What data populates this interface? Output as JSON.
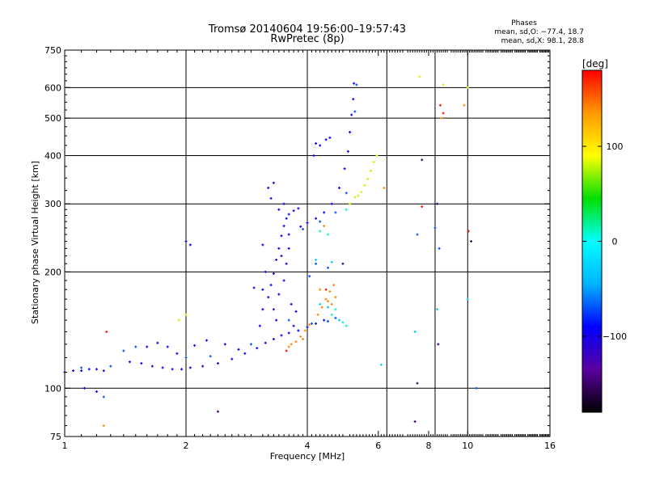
{
  "chart_data": {
    "type": "scatter",
    "title": "Tromsø 20140604 19:56:00–19:57:43",
    "subtitle": "RwPretec (8p)",
    "stats": {
      "heading": "Phases",
      "line_o": "mean, sd,O: −77.4, 18.7",
      "line_x": "mean, sd,X:  98.1, 28.8"
    },
    "xlabel": "Frequency [MHz]",
    "ylabel": "Stationary phase Virtual Height [km]",
    "x_scale": "log",
    "y_scale": "log",
    "xlim": [
      1,
      16
    ],
    "ylim": [
      75,
      750
    ],
    "x_ticks": [
      {
        "value": 1,
        "label": "1"
      },
      {
        "value": 2,
        "label": "2"
      },
      {
        "value": 4,
        "label": "4"
      },
      {
        "value": 6,
        "label": "6"
      },
      {
        "value": 8,
        "label": "8"
      },
      {
        "value": 10,
        "label": "10"
      },
      {
        "value": 16,
        "label": "16"
      }
    ],
    "x_gridlines": [
      2,
      4,
      6.3,
      8.3,
      10
    ],
    "y_ticks": [
      {
        "value": 75,
        "label": "75"
      },
      {
        "value": 100,
        "label": "100"
      },
      {
        "value": 200,
        "label": "200"
      },
      {
        "value": 300,
        "label": "300"
      },
      {
        "value": 400,
        "label": "400"
      },
      {
        "value": 500,
        "label": "500"
      },
      {
        "value": 600,
        "label": "600"
      },
      {
        "value": 750,
        "label": "750"
      }
    ],
    "y_gridlines": [
      100,
      200,
      300,
      400,
      500,
      600
    ],
    "grid": true,
    "colorbar": {
      "label": "[deg]",
      "range": [
        -180,
        180
      ],
      "ticks": [
        {
          "value": 100,
          "label": "100"
        },
        {
          "value": 0,
          "label": "0"
        },
        {
          "value": -100,
          "label": "−100"
        }
      ],
      "colors": [
        "#000000",
        "#5a00a0",
        "#0000ff",
        "#00b4ff",
        "#00ffff",
        "#00e000",
        "#ffff00",
        "#ff9900",
        "#ff0000"
      ]
    },
    "series": [
      {
        "phase_deg": -95,
        "points": [
          [
            1.0,
            110
          ],
          [
            1.05,
            111
          ],
          [
            1.1,
            111
          ],
          [
            1.15,
            112
          ],
          [
            1.2,
            112
          ],
          [
            1.25,
            111
          ],
          [
            1.45,
            117
          ],
          [
            1.55,
            116
          ],
          [
            1.65,
            114
          ],
          [
            1.75,
            113
          ],
          [
            1.85,
            112
          ],
          [
            1.95,
            112
          ],
          [
            2.05,
            113
          ],
          [
            2.2,
            114
          ],
          [
            2.4,
            116
          ],
          [
            2.6,
            119
          ],
          [
            2.8,
            123
          ],
          [
            3.0,
            127
          ],
          [
            3.15,
            131
          ],
          [
            3.3,
            134
          ],
          [
            3.45,
            137
          ],
          [
            3.6,
            139
          ],
          [
            3.8,
            141
          ],
          [
            4.0,
            144
          ],
          [
            4.2,
            147
          ],
          [
            4.4,
            150
          ],
          [
            1.6,
            128
          ],
          [
            1.7,
            131
          ],
          [
            1.8,
            128
          ],
          [
            1.9,
            123
          ],
          [
            2.1,
            129
          ],
          [
            2.25,
            133
          ],
          [
            2.5,
            130
          ],
          [
            2.7,
            126
          ],
          [
            3.05,
            145
          ],
          [
            3.1,
            160
          ],
          [
            3.2,
            172
          ],
          [
            3.25,
            185
          ],
          [
            3.3,
            198
          ],
          [
            3.35,
            215
          ],
          [
            3.4,
            230
          ],
          [
            3.45,
            248
          ],
          [
            3.5,
            263
          ],
          [
            3.55,
            275
          ],
          [
            3.6,
            282
          ],
          [
            3.7,
            288
          ],
          [
            3.8,
            292
          ],
          [
            3.2,
            330
          ],
          [
            3.3,
            340
          ],
          [
            3.25,
            310
          ],
          [
            3.4,
            290
          ],
          [
            3.5,
            300
          ],
          [
            3.6,
            250
          ],
          [
            3.15,
            200
          ],
          [
            3.1,
            180
          ],
          [
            3.3,
            160
          ],
          [
            3.4,
            175
          ],
          [
            3.5,
            190
          ],
          [
            3.55,
            210
          ],
          [
            3.45,
            220
          ],
          [
            3.6,
            230
          ],
          [
            3.35,
            150
          ],
          [
            3.65,
            165
          ],
          [
            3.7,
            145
          ],
          [
            3.75,
            158
          ],
          [
            3.85,
            262
          ],
          [
            4.0,
            268
          ],
          [
            4.2,
            275
          ],
          [
            4.4,
            285
          ],
          [
            4.6,
            300
          ],
          [
            4.8,
            330
          ],
          [
            4.95,
            370
          ],
          [
            5.05,
            410
          ],
          [
            5.1,
            460
          ],
          [
            5.15,
            510
          ],
          [
            5.2,
            560
          ],
          [
            5.22,
            615
          ],
          [
            4.45,
            440
          ],
          [
            4.55,
            445
          ],
          [
            4.2,
            430
          ],
          [
            4.3,
            425
          ],
          [
            2.0,
            240
          ],
          [
            2.05,
            235
          ],
          [
            1.12,
            100
          ],
          [
            1.2,
            98
          ],
          [
            4.15,
            400
          ],
          [
            3.1,
            235
          ],
          [
            2.95,
            182
          ]
        ]
      },
      {
        "phase_deg": -70,
        "points": [
          [
            1.1,
            113
          ],
          [
            1.3,
            114
          ],
          [
            1.4,
            125
          ],
          [
            1.5,
            128
          ],
          [
            2.0,
            120
          ],
          [
            2.3,
            121
          ],
          [
            2.9,
            130
          ],
          [
            3.6,
            150
          ],
          [
            4.1,
            147
          ],
          [
            4.5,
            149
          ],
          [
            4.7,
            152
          ],
          [
            3.9,
            258
          ],
          [
            4.3,
            270
          ],
          [
            4.7,
            285
          ],
          [
            5.0,
            320
          ],
          [
            5.25,
            520
          ],
          [
            4.2,
            210
          ],
          [
            4.5,
            205
          ],
          [
            4.05,
            195
          ],
          [
            7.5,
            250
          ],
          [
            8.3,
            260
          ],
          [
            8.5,
            230
          ],
          [
            10.5,
            100
          ],
          [
            1.25,
            95
          ],
          [
            5.3,
            610
          ]
        ]
      },
      {
        "phase_deg": -30,
        "points": [
          [
            4.2,
            215
          ],
          [
            4.6,
            212
          ],
          [
            4.3,
            165
          ],
          [
            4.5,
            162
          ],
          [
            4.8,
            150
          ],
          [
            7.4,
            140
          ],
          [
            8.4,
            160
          ],
          [
            10.0,
            170
          ],
          [
            6.1,
            115
          ]
        ]
      },
      {
        "phase_deg": 10,
        "points": [
          [
            4.6,
            155
          ],
          [
            4.9,
            148
          ],
          [
            5.0,
            145
          ],
          [
            4.7,
            160
          ],
          [
            4.3,
            255
          ],
          [
            4.5,
            250
          ],
          [
            5.0,
            290
          ]
        ]
      },
      {
        "phase_deg": 80,
        "points": [
          [
            5.35,
            315
          ],
          [
            5.45,
            322
          ],
          [
            5.55,
            335
          ],
          [
            5.65,
            348
          ],
          [
            5.75,
            365
          ],
          [
            5.85,
            385
          ],
          [
            5.95,
            400
          ],
          [
            5.1,
            300
          ],
          [
            5.25,
            312
          ],
          [
            7.6,
            640
          ],
          [
            8.7,
            610
          ],
          [
            10.0,
            600
          ],
          [
            2.0,
            155
          ],
          [
            1.92,
            150
          ]
        ]
      },
      {
        "phase_deg": 140,
        "points": [
          [
            3.6,
            128
          ],
          [
            3.75,
            132
          ],
          [
            3.85,
            136
          ],
          [
            3.95,
            141
          ],
          [
            4.05,
            146
          ],
          [
            4.25,
            155
          ],
          [
            4.35,
            162
          ],
          [
            4.45,
            170
          ],
          [
            4.55,
            178
          ],
          [
            4.65,
            185
          ],
          [
            4.5,
            168
          ],
          [
            4.6,
            165
          ],
          [
            4.7,
            172
          ],
          [
            4.3,
            180
          ],
          [
            6.2,
            330
          ],
          [
            8.6,
            500
          ],
          [
            9.8,
            540
          ],
          [
            4.4,
            263
          ],
          [
            3.65,
            130
          ],
          [
            3.9,
            134
          ],
          [
            1.25,
            80
          ]
        ]
      },
      {
        "phase_deg": 175,
        "points": [
          [
            8.55,
            540
          ],
          [
            8.7,
            515
          ],
          [
            7.7,
            295
          ],
          [
            4.45,
            180
          ],
          [
            3.55,
            125
          ],
          [
            10.05,
            255
          ],
          [
            1.27,
            140
          ]
        ]
      },
      {
        "phase_deg": -150,
        "points": [
          [
            7.5,
            103
          ],
          [
            8.4,
            300
          ],
          [
            7.4,
            82
          ],
          [
            10.2,
            240
          ],
          [
            2.4,
            87
          ],
          [
            4.9,
            210
          ],
          [
            7.7,
            390
          ],
          [
            8.45,
            130
          ]
        ]
      }
    ]
  }
}
